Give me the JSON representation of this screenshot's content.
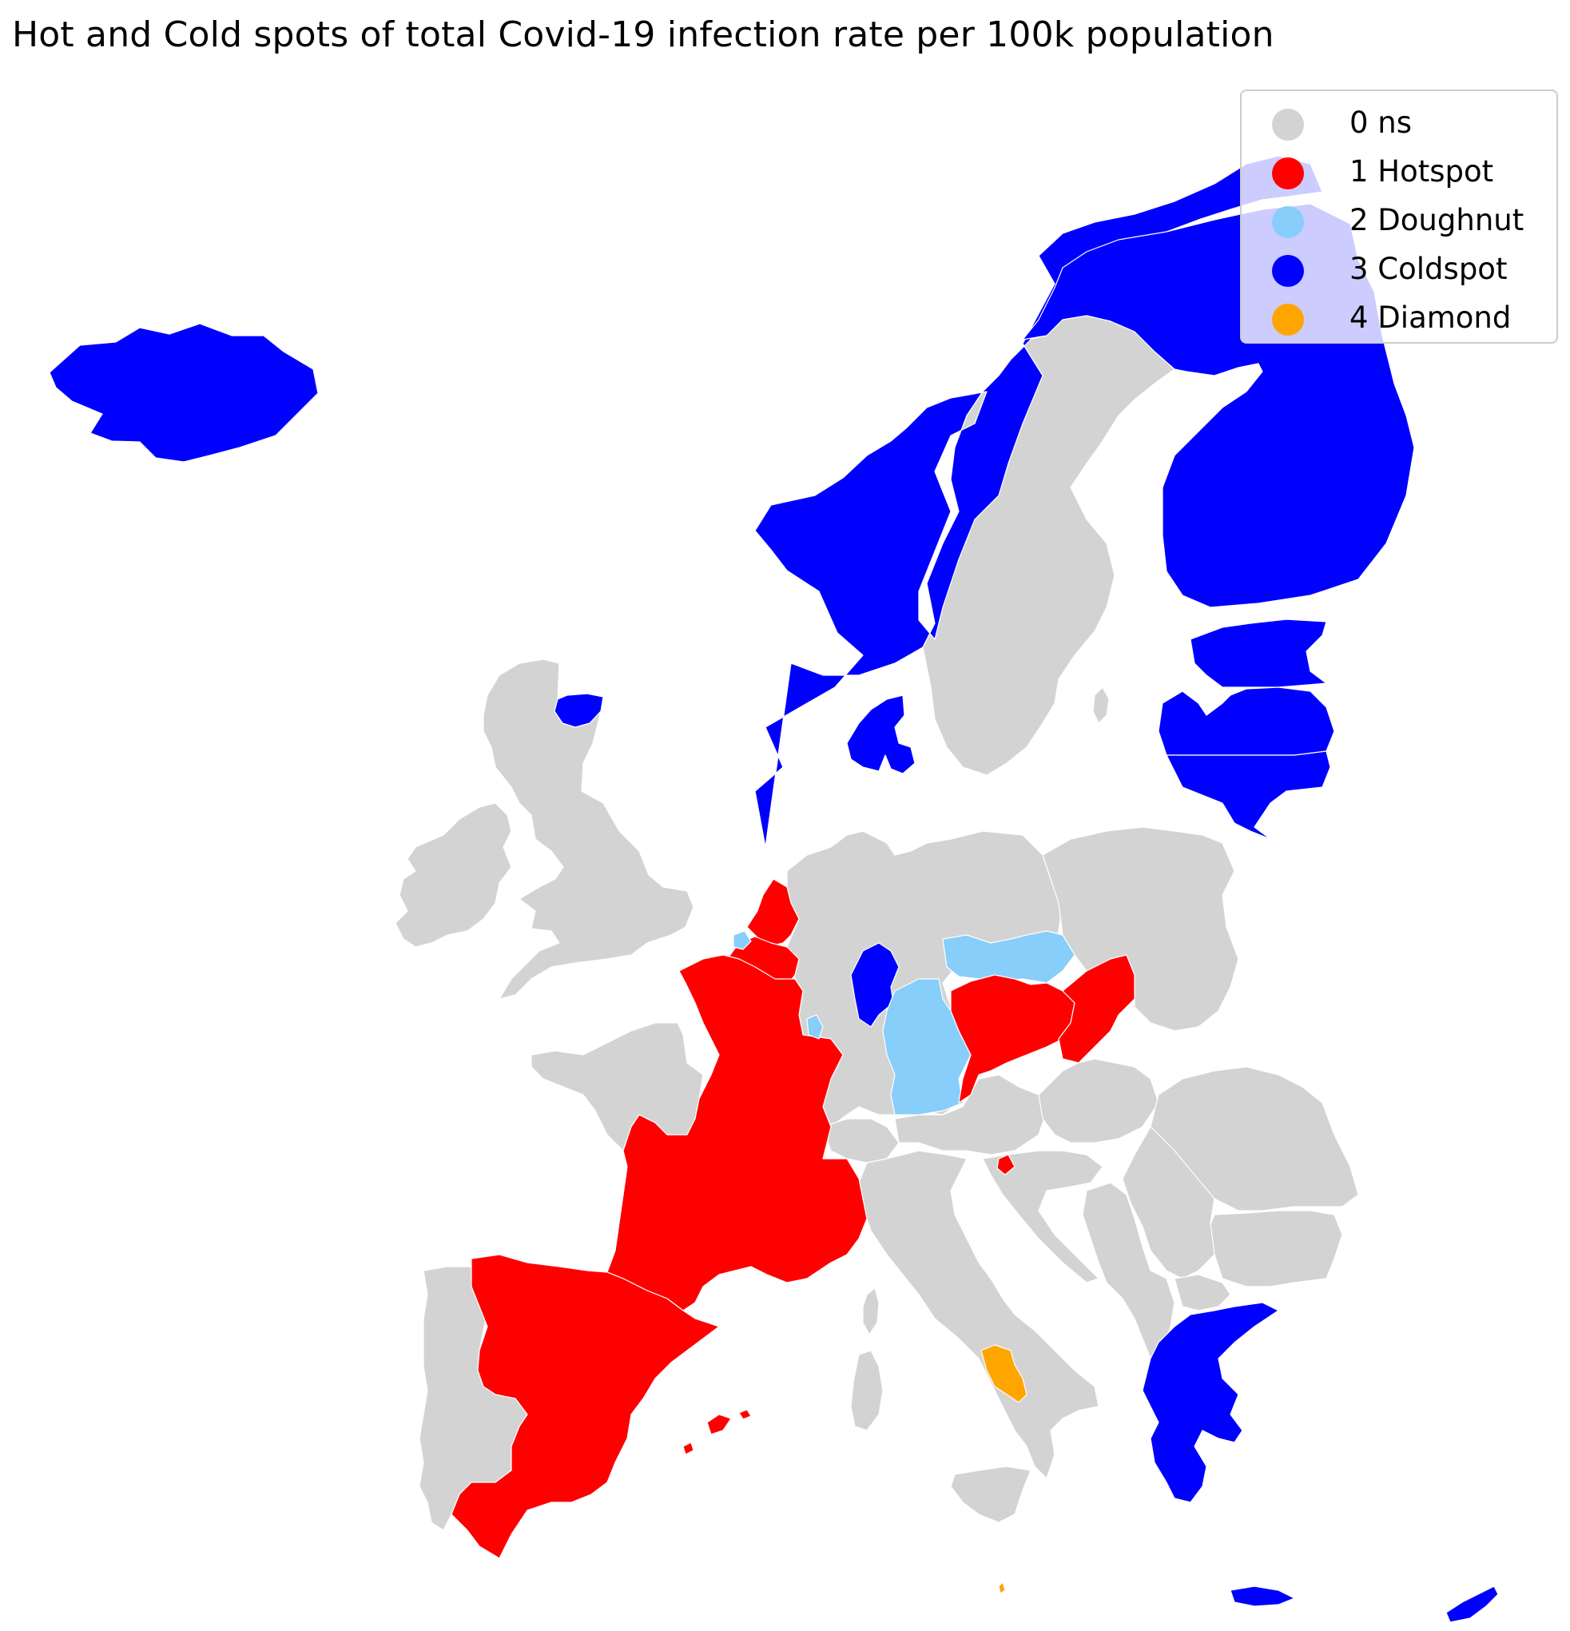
{
  "title": "Hot and Cold spots of total Covid-19 infection rate per 100k population",
  "legend": [
    {
      "label": "0 ns",
      "color": "#d3d3d3"
    },
    {
      "label": "1 Hotspot",
      "color": "#ff0000"
    },
    {
      "label": "2 Doughnut",
      "color": "#87cefa"
    },
    {
      "label": "3 Coldspot",
      "color": "#0000ff"
    },
    {
      "label": "4 Diamond",
      "color": "#ffa500"
    }
  ],
  "regions": [
    {
      "name": "Iceland",
      "category": 3
    },
    {
      "name": "Norway",
      "category": 3
    },
    {
      "name": "Sweden",
      "category": 0
    },
    {
      "name": "Finland",
      "category": 3
    },
    {
      "name": "Estonia",
      "category": 3
    },
    {
      "name": "Latvia",
      "category": 3
    },
    {
      "name": "Lithuania",
      "category": 3
    },
    {
      "name": "Denmark",
      "category": 3
    },
    {
      "name": "Scotland north-east",
      "category": 3
    },
    {
      "name": "United Kingdom",
      "category": 0
    },
    {
      "name": "Ireland",
      "category": 0
    },
    {
      "name": "Netherlands",
      "category": 1
    },
    {
      "name": "Belgium",
      "category": 1
    },
    {
      "name": "France",
      "category": 1
    },
    {
      "name": "Brittany",
      "category": 0
    },
    {
      "name": "Spain",
      "category": 1
    },
    {
      "name": "Portugal",
      "category": 0
    },
    {
      "name": "Germany",
      "category": 0
    },
    {
      "name": "Hesse",
      "category": 3
    },
    {
      "name": "Bavaria",
      "category": 2
    },
    {
      "name": "Saxony",
      "category": 2
    },
    {
      "name": "Czechia",
      "category": 1
    },
    {
      "name": "Slovakia",
      "category": 1
    },
    {
      "name": "Poland",
      "category": 0
    },
    {
      "name": "Switzerland",
      "category": 0
    },
    {
      "name": "Austria",
      "category": 0
    },
    {
      "name": "Italy",
      "category": 0
    },
    {
      "name": "Campania",
      "category": 4
    },
    {
      "name": "Hungary",
      "category": 0
    },
    {
      "name": "Romania",
      "category": 0
    },
    {
      "name": "Bulgaria",
      "category": 0
    },
    {
      "name": "Greece",
      "category": 3
    },
    {
      "name": "Cyprus",
      "category": 3
    },
    {
      "name": "Croatia",
      "category": 0
    },
    {
      "name": "Sardinia",
      "category": 0
    },
    {
      "name": "Corsica",
      "category": 0
    },
    {
      "name": "Sicily",
      "category": 0
    },
    {
      "name": "Balearic Islands",
      "category": 1
    }
  ]
}
